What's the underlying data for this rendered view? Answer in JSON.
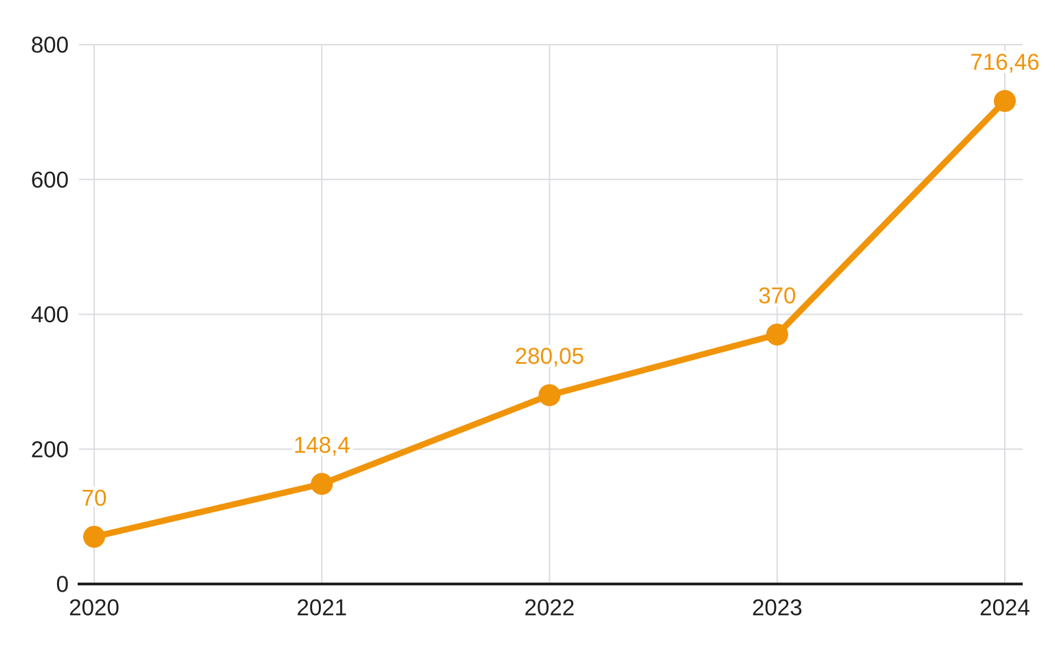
{
  "chart_data": {
    "type": "line",
    "categories": [
      "2020",
      "2021",
      "2022",
      "2023",
      "2024"
    ],
    "series": [
      {
        "name": "series-1",
        "values": [
          70,
          148.4,
          280.05,
          370,
          716.46
        ],
        "point_labels": [
          "70",
          "148,4",
          "280,05",
          "370",
          "716,46"
        ]
      }
    ],
    "title": "",
    "xlabel": "",
    "ylabel": "",
    "ylim": [
      0,
      800
    ],
    "yticks": [
      0,
      200,
      400,
      600,
      800
    ],
    "grid": true,
    "legend_position": "none",
    "colors": {
      "series": "#F0940A",
      "gridline": "#DADCE0",
      "axis_line": "#212121",
      "tick_label": "#1F1F1F",
      "background": "#FFFFFF"
    }
  }
}
